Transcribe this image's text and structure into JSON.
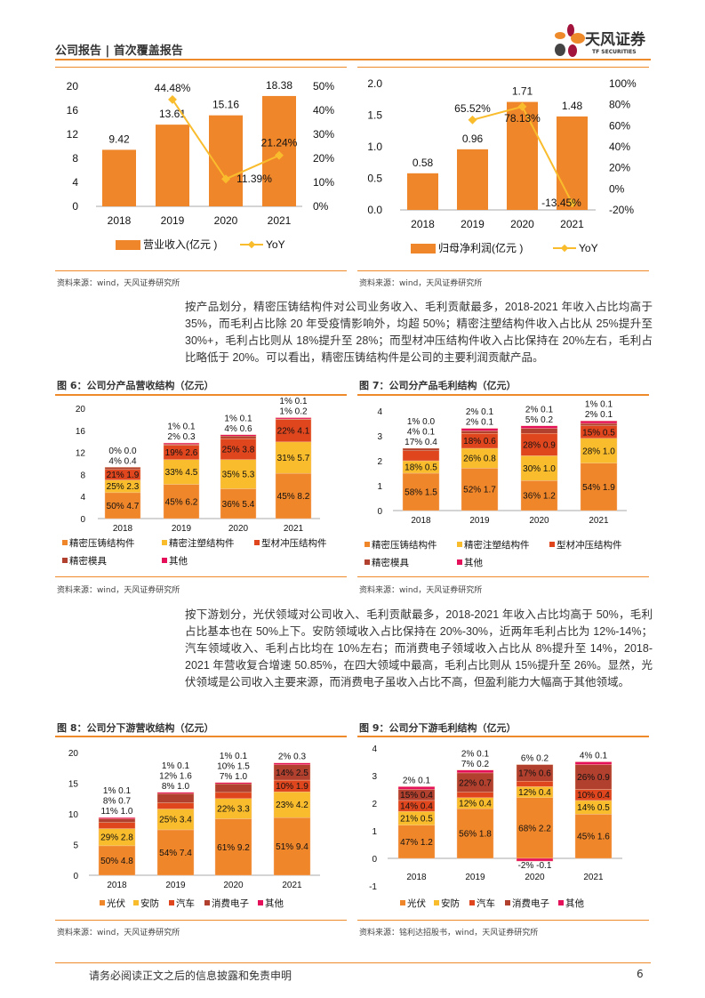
{
  "header": {
    "title": "公司报告 | 首次覆盖报告",
    "logo_cn": "天风证券",
    "logo_en": "TF SECURITIES"
  },
  "paragraphs": [
    "按产品划分，精密压铸结构件对公司业务收入、毛利贡献最多，2018-2021 年收入占比均高于 35%，而毛利占比除 20 年受疫情影响外，均超 50%；精密注塑结构件收入占比从 25%提升至 30%+，毛利占比则从 18%提升至 28%；而型材冲压结构件收入占比保持在 20%左右，毛利占比略低于 20%。可以看出，精密压铸结构件是公司的主要利润贡献产品。",
    "按下游划分，光伏领域对公司收入、毛利贡献最多，2018-2021 年收入占比均高于 50%，毛利占比基本也在 50%上下。安防领域收入占比保持在 20%-30%，近两年毛利占比为 12%-14%；汽车领域收入、毛利占比均在 10%左右；而消费电子领域收入占比从 8%提升至 14%，2018-2021 年营收复合增速 50.85%，在四大领域中最高，毛利占比则从 15%提升至 26%。显然，光伏领域是公司收入主要来源，而消费电子虽收入占比不高，但盈利能力大幅高于其他领域。"
  ],
  "footer": {
    "disclaimer": "请务必阅读正文之后的信息披露和免责申明",
    "page": "6"
  },
  "colors": {
    "accent": "#EE8A2A",
    "c1": "#F0862A",
    "c2": "#F9BC2D",
    "c3": "#E0461E",
    "c4": "#B2402E",
    "c5": "#E4105A"
  },
  "chart_data": [
    {
      "id": "rev",
      "type": "bar+line",
      "title": "",
      "source": "资料来源：wind，天风证券研究所",
      "categories": [
        "2018",
        "2019",
        "2020",
        "2021"
      ],
      "bar": {
        "name": "营业收入(亿元 )",
        "values": [
          9.42,
          13.61,
          15.16,
          18.38
        ],
        "labels": [
          "9.42",
          "13.61",
          "15.16",
          "18.38"
        ]
      },
      "line": {
        "name": "YoY",
        "values": [
          null,
          44.48,
          11.39,
          21.24
        ],
        "labels": [
          "",
          "44.48%",
          "11.39%",
          "21.24%"
        ]
      },
      "ylim": [
        0,
        20
      ],
      "yticks": [
        "0",
        "4",
        "8",
        "12",
        "16",
        "20"
      ],
      "y2lim": [
        0,
        50
      ],
      "y2ticks": [
        "0%",
        "10%",
        "20%",
        "30%",
        "40%",
        "50%"
      ]
    },
    {
      "id": "np",
      "type": "bar+line",
      "title": "",
      "source": "资料来源：wind，天风证券研究所",
      "categories": [
        "2018",
        "2019",
        "2020",
        "2021"
      ],
      "bar": {
        "name": "归母净利润(亿元 )",
        "values": [
          0.58,
          0.96,
          1.71,
          1.48
        ],
        "labels": [
          "0.58",
          "0.96",
          "1.71",
          "1.48"
        ]
      },
      "line": {
        "name": "YoY",
        "values": [
          null,
          65.52,
          78.13,
          -13.45
        ],
        "labels": [
          "",
          "65.52%",
          "78.13%",
          "-13.45%"
        ]
      },
      "ylim": [
        0,
        2
      ],
      "yticks": [
        "0.0",
        "0.5",
        "1.0",
        "1.5",
        "2.0"
      ],
      "y2lim": [
        -20,
        100
      ],
      "y2ticks": [
        "-20%",
        "0%",
        "20%",
        "40%",
        "60%",
        "80%",
        "100%"
      ]
    },
    {
      "id": "f6",
      "type": "stacked-bar",
      "title": "图 6：公司分产品营收结构（亿元）",
      "source": "资料来源：wind，天风证券研究所",
      "categories": [
        "2018",
        "2019",
        "2020",
        "2021"
      ],
      "ylim": [
        0,
        20
      ],
      "yticks": [
        "0",
        "4",
        "8",
        "12",
        "16",
        "20"
      ],
      "series": [
        {
          "name": "精密压铸结构件",
          "values": [
            4.7,
            6.2,
            5.4,
            8.2
          ],
          "pct": [
            "50%",
            "45%",
            "36%",
            "45%"
          ]
        },
        {
          "name": "精密注塑结构件",
          "values": [
            2.3,
            4.5,
            5.3,
            5.7
          ],
          "pct": [
            "25%",
            "33%",
            "35%",
            "31%"
          ]
        },
        {
          "name": "型材冲压结构件",
          "values": [
            1.9,
            2.6,
            3.8,
            4.1
          ],
          "pct": [
            "21%",
            "19%",
            "25%",
            "22%"
          ]
        },
        {
          "name": "精密模具",
          "values": [
            0.4,
            0.3,
            0.6,
            0.2
          ],
          "pct": [
            "4%",
            "2%",
            "4%",
            "1%"
          ]
        },
        {
          "name": "其他",
          "values": [
            0.0,
            0.1,
            0.1,
            0.1
          ],
          "pct": [
            "0%",
            "1%",
            "1%",
            "1%"
          ]
        }
      ]
    },
    {
      "id": "f7",
      "type": "stacked-bar",
      "title": "图 7：公司分产品毛利结构（亿元）",
      "source": "资料来源：wind，天风证券研究所",
      "categories": [
        "2018",
        "2019",
        "2020",
        "2021"
      ],
      "ylim": [
        0,
        4
      ],
      "yticks": [
        "0",
        "1",
        "2",
        "3",
        "4"
      ],
      "series": [
        {
          "name": "精密压铸结构件",
          "values": [
            1.5,
            1.7,
            1.2,
            1.9
          ],
          "pct": [
            "58%",
            "52%",
            "36%",
            "54%"
          ]
        },
        {
          "name": "精密注塑结构件",
          "values": [
            0.5,
            0.8,
            1.0,
            1.0
          ],
          "pct": [
            "18%",
            "26%",
            "30%",
            "28%"
          ]
        },
        {
          "name": "型材冲压结构件",
          "values": [
            0.4,
            0.6,
            0.9,
            0.5
          ],
          "pct": [
            "17%",
            "18%",
            "28%",
            "15%"
          ]
        },
        {
          "name": "精密模具",
          "values": [
            0.1,
            0.1,
            0.2,
            0.1
          ],
          "pct": [
            "4%",
            "2%",
            "5%",
            "2%"
          ]
        },
        {
          "name": "其他",
          "values": [
            0.0,
            0.1,
            0.1,
            0.1
          ],
          "pct": [
            "1%",
            "2%",
            "2%",
            "1%"
          ]
        }
      ]
    },
    {
      "id": "f8",
      "type": "stacked-bar",
      "title": "图 8：公司分下游营收结构（亿元）",
      "source": "资料来源：wind，天风证券研究所",
      "categories": [
        "2018",
        "2019",
        "2020",
        "2021"
      ],
      "ylim": [
        0,
        20
      ],
      "yticks": [
        "0",
        "5",
        "10",
        "15",
        "20"
      ],
      "series": [
        {
          "name": "光伏",
          "values": [
            4.8,
            7.4,
            9.2,
            9.4
          ],
          "pct": [
            "50%",
            "54%",
            "61%",
            "51%"
          ]
        },
        {
          "name": "安防",
          "values": [
            2.8,
            3.4,
            3.3,
            4.2
          ],
          "pct": [
            "29%",
            "25%",
            "22%",
            "23%"
          ]
        },
        {
          "name": "汽车",
          "values": [
            1.0,
            1.0,
            1.0,
            1.9
          ],
          "pct": [
            "11%",
            "8%",
            "7%",
            "10%"
          ]
        },
        {
          "name": "消费电子",
          "values": [
            0.7,
            1.6,
            1.5,
            2.5
          ],
          "pct": [
            "8%",
            "12%",
            "10%",
            "14%"
          ]
        },
        {
          "name": "其他",
          "values": [
            0.1,
            0.1,
            0.1,
            0.3
          ],
          "pct": [
            "1%",
            "1%",
            "1%",
            "2%"
          ]
        }
      ]
    },
    {
      "id": "f9",
      "type": "stacked-bar",
      "title": "图 9：公司分下游毛利结构（亿元）",
      "source": "资料来源：铭利达招股书，wind，天风证券研究所",
      "categories": [
        "2018",
        "2019",
        "2020",
        "2021"
      ],
      "ylim": [
        -1,
        4
      ],
      "yticks": [
        "-1",
        "0",
        "1",
        "2",
        "3",
        "4"
      ],
      "series": [
        {
          "name": "光伏",
          "values": [
            1.2,
            1.8,
            2.2,
            1.6
          ],
          "pct": [
            "47%",
            "56%",
            "68%",
            "45%"
          ]
        },
        {
          "name": "安防",
          "values": [
            0.5,
            0.4,
            0.4,
            0.5
          ],
          "pct": [
            "21%",
            "12%",
            "12%",
            "14%"
          ]
        },
        {
          "name": "汽车",
          "values": [
            0.4,
            0.2,
            0.2,
            0.4
          ],
          "pct": [
            "14%",
            "7%",
            "6%",
            "10%"
          ]
        },
        {
          "name": "消费电子",
          "values": [
            0.4,
            0.7,
            0.6,
            0.9
          ],
          "pct": [
            "15%",
            "22%",
            "17%",
            "26%"
          ]
        },
        {
          "name": "其他",
          "values": [
            0.1,
            0.1,
            -0.1,
            0.1
          ],
          "pct": [
            "2%",
            "2%",
            "-2%",
            "4%"
          ]
        }
      ]
    }
  ]
}
